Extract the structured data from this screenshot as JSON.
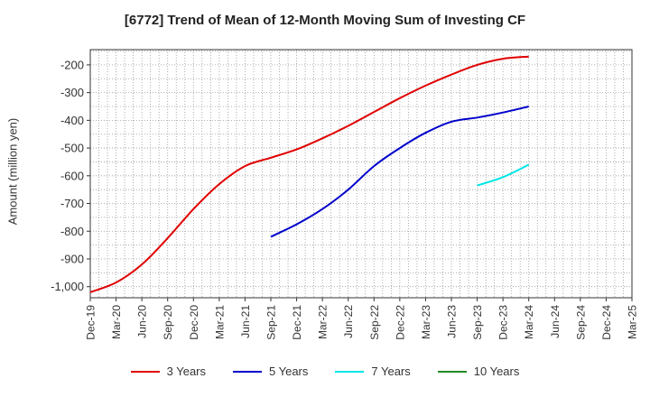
{
  "chart_data": {
    "type": "line",
    "title": "[6772]  Trend of Mean of 12-Month Moving Sum of Investing CF",
    "ylabel": "Amount (million yen)",
    "xlabel": "",
    "x_ticks": [
      "Dec-19",
      "Mar-20",
      "Jun-20",
      "Sep-20",
      "Dec-20",
      "Mar-21",
      "Jun-21",
      "Sep-21",
      "Dec-21",
      "Mar-22",
      "Jun-22",
      "Sep-22",
      "Dec-22",
      "Mar-23",
      "Jun-23",
      "Sep-23",
      "Dec-23",
      "Mar-24",
      "Jun-24",
      "Sep-24",
      "Dec-24",
      "Mar-25"
    ],
    "y_ticks": [
      -200,
      -300,
      -400,
      -500,
      -600,
      -700,
      -800,
      -900,
      -1000
    ],
    "y_tick_labels": [
      "-200",
      "-300",
      "-400",
      "-500",
      "-600",
      "-700",
      "-800",
      "-900",
      "-1,000"
    ],
    "ylim": [
      -1040,
      -145
    ],
    "grid": true,
    "legend_position": "bottom",
    "series": [
      {
        "name": "3 Years",
        "color": "#e00000",
        "points": [
          [
            "Dec-19",
            -1020
          ],
          [
            "Mar-20",
            -985
          ],
          [
            "Jun-20",
            -920
          ],
          [
            "Sep-20",
            -825
          ],
          [
            "Dec-20",
            -720
          ],
          [
            "Mar-21",
            -630
          ],
          [
            "Jun-21",
            -565
          ],
          [
            "Sep-21",
            -535
          ],
          [
            "Dec-21",
            -505
          ],
          [
            "Mar-22",
            -465
          ],
          [
            "Jun-22",
            -420
          ],
          [
            "Sep-22",
            -370
          ],
          [
            "Dec-22",
            -320
          ],
          [
            "Mar-23",
            -275
          ],
          [
            "Jun-23",
            -235
          ],
          [
            "Sep-23",
            -200
          ],
          [
            "Dec-23",
            -178
          ],
          [
            "Mar-24",
            -170
          ]
        ]
      },
      {
        "name": "5 Years",
        "color": "#0000cc",
        "points": [
          [
            "Sep-21",
            -820
          ],
          [
            "Dec-21",
            -775
          ],
          [
            "Mar-22",
            -720
          ],
          [
            "Jun-22",
            -650
          ],
          [
            "Sep-22",
            -565
          ],
          [
            "Dec-22",
            -500
          ],
          [
            "Mar-23",
            -445
          ],
          [
            "Jun-23",
            -405
          ],
          [
            "Sep-23",
            -390
          ],
          [
            "Dec-23",
            -372
          ],
          [
            "Mar-24",
            -350
          ]
        ]
      },
      {
        "name": "7 Years",
        "color": "#00e5e5",
        "points": [
          [
            "Sep-23",
            -635
          ],
          [
            "Dec-23",
            -605
          ],
          [
            "Mar-24",
            -560
          ]
        ]
      },
      {
        "name": "10 Years",
        "color": "#228b22",
        "points": []
      }
    ]
  }
}
